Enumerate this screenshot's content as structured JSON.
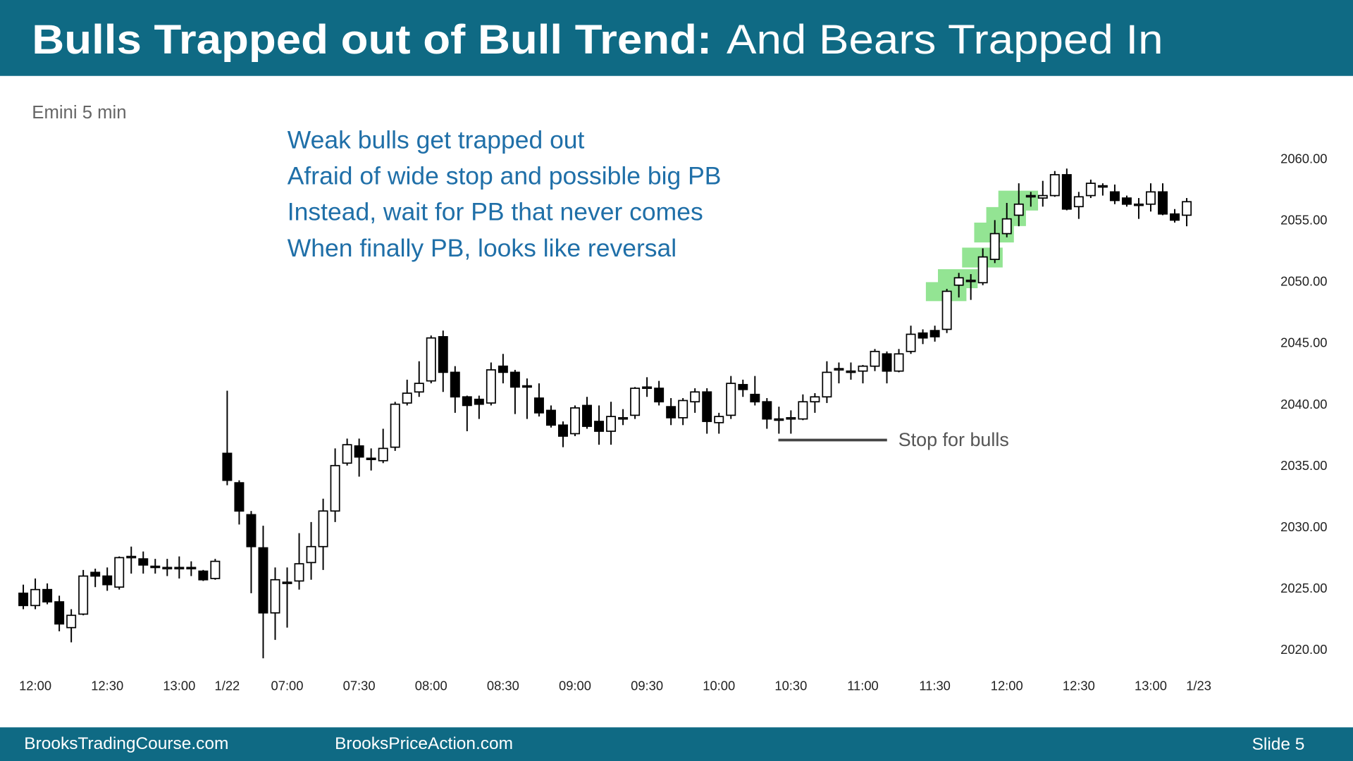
{
  "header": {
    "title_bold": "Bulls Trapped out of Bull Trend:",
    "title_rest": "And Bears Trapped In"
  },
  "footer": {
    "left": "BrooksTradingCourse.com",
    "center": "BrooksPriceAction.com",
    "slide": "Slide 5"
  },
  "chart_data": {
    "type": "candlestick",
    "subtitle": "Emini 5 min",
    "annotations": [
      "Weak bulls get trapped out",
      "Afraid of wide stop and possible big PB",
      "Instead, wait for PB that never comes",
      "When finally PB, looks like reversal"
    ],
    "stop_label": "Stop for bulls",
    "categories": [
      null,
      "12:00",
      null,
      null,
      null,
      null,
      null,
      "12:30",
      null,
      null,
      null,
      null,
      null,
      "13:00",
      null,
      null,
      null,
      "1/22",
      null,
      null,
      null,
      null,
      "07:00",
      null,
      null,
      null,
      null,
      null,
      "07:30",
      null,
      null,
      null,
      null,
      null,
      "08:00",
      null,
      null,
      null,
      null,
      null,
      "08:30",
      null,
      null,
      null,
      null,
      null,
      "09:00",
      null,
      null,
      null,
      null,
      null,
      "09:30",
      null,
      null,
      null,
      null,
      null,
      "10:00",
      null,
      null,
      null,
      null,
      null,
      "10:30",
      null,
      null,
      null,
      null,
      null,
      "11:00",
      null,
      null,
      null,
      null,
      null,
      "11:30",
      null,
      null,
      null,
      null,
      null,
      "12:00",
      null,
      null,
      null,
      null,
      null,
      "12:30",
      null,
      null,
      null,
      null,
      null,
      "13:00",
      null,
      null,
      null,
      "1/23"
    ],
    "open": [
      2024.6,
      2023.6,
      2024.9,
      2023.9,
      2021.8,
      2022.9,
      2026.3,
      2026.0,
      2025.1,
      2027.5,
      2027.4,
      2026.8,
      2026.7,
      2026.7,
      2026.7,
      2026.4,
      2025.8,
      2036.0,
      2033.6,
      2031.0,
      2028.3,
      2023.0,
      2025.5,
      2025.6,
      2027.1,
      2028.4,
      2031.3,
      2035.2,
      2036.6,
      2035.6,
      2035.4,
      2036.5,
      2040.1,
      2041.0,
      2041.9,
      2045.5,
      2042.6,
      2040.6,
      2040.4,
      2040.1,
      2043.1,
      2042.6,
      2041.5,
      2040.5,
      2039.5,
      2038.3,
      2037.6,
      2039.9,
      2038.6,
      2037.8,
      2038.9,
      2039.1,
      2041.4,
      2041.3,
      2039.8,
      2038.9,
      2040.2,
      2041.0,
      2038.5,
      2039.1,
      2041.6,
      2040.8,
      2040.2,
      2038.8,
      2038.8,
      2038.8,
      2040.2,
      2040.6,
      2042.8,
      2042.7,
      2042.7,
      2043.1,
      2044.1,
      2042.7,
      2044.3,
      2045.8,
      2046.0,
      2046.1,
      2049.7,
      2050.0,
      2049.9,
      2051.8,
      2053.9,
      2055.4,
      2056.9,
      2056.8,
      2057.0,
      2058.7,
      2056.1,
      2057.0,
      2057.7,
      2057.3,
      2056.8,
      2056.3,
      2056.3,
      2057.3,
      2055.5,
      2055.4,
      null
    ],
    "high": [
      2025.3,
      2025.8,
      2025.4,
      2024.4,
      2023.3,
      2026.5,
      2026.6,
      2026.7,
      2027.6,
      2028.4,
      2028.0,
      2027.4,
      2027.4,
      2027.6,
      2027.2,
      2026.5,
      2027.4,
      2041.1,
      2033.8,
      2031.3,
      2030.1,
      2026.7,
      2026.7,
      2029.5,
      2030.4,
      2032.3,
      2036.4,
      2037.2,
      2037.2,
      2036.4,
      2038.0,
      2040.2,
      2042.0,
      2043.5,
      2045.6,
      2046.0,
      2043.1,
      2040.7,
      2040.7,
      2043.4,
      2044.1,
      2042.8,
      2042.1,
      2041.7,
      2039.9,
      2038.6,
      2039.9,
      2040.6,
      2039.9,
      2040.2,
      2039.6,
      2041.4,
      2042.2,
      2041.9,
      2040.5,
      2040.5,
      2041.3,
      2041.3,
      2039.3,
      2042.3,
      2042.0,
      2042.3,
      2040.5,
      2039.8,
      2039.5,
      2040.8,
      2040.9,
      2043.5,
      2043.4,
      2043.4,
      2043.2,
      2044.5,
      2044.3,
      2044.5,
      2046.4,
      2046.1,
      2046.4,
      2049.4,
      2050.7,
      2050.6,
      2052.7,
      2055.0,
      2056.4,
      2058.0,
      2057.3,
      2058.2,
      2059.0,
      2059.2,
      2057.3,
      2058.3,
      2058.0,
      2057.9,
      2057.0,
      2056.8,
      2058.0,
      2058.0,
      2055.9,
      2056.8,
      null
    ],
    "low": [
      2023.3,
      2023.3,
      2023.7,
      2021.5,
      2020.6,
      2022.8,
      2025.1,
      2024.8,
      2024.9,
      2026.2,
      2026.2,
      2026.2,
      2026.0,
      2025.8,
      2026.0,
      2025.6,
      2025.7,
      2033.4,
      2030.2,
      2024.6,
      2019.3,
      2020.8,
      2021.8,
      2024.9,
      2025.7,
      2026.5,
      2030.4,
      2035.0,
      2034.1,
      2034.6,
      2035.2,
      2036.2,
      2039.9,
      2040.6,
      2041.7,
      2041.0,
      2039.3,
      2037.8,
      2038.8,
      2039.9,
      2041.7,
      2039.2,
      2038.8,
      2039.0,
      2038.1,
      2036.5,
      2037.4,
      2038.0,
      2036.7,
      2036.7,
      2038.3,
      2038.8,
      2040.6,
      2039.9,
      2038.3,
      2038.3,
      2039.3,
      2037.6,
      2037.6,
      2038.8,
      2040.6,
      2039.9,
      2038.0,
      2037.6,
      2037.6,
      2038.7,
      2039.3,
      2040.1,
      2041.7,
      2042.0,
      2041.7,
      2042.7,
      2041.7,
      2042.6,
      2044.1,
      2044.9,
      2045.1,
      2045.8,
      2048.7,
      2048.5,
      2049.7,
      2051.5,
      2053.6,
      2054.5,
      2056.1,
      2056.1,
      2056.9,
      2055.8,
      2055.1,
      2056.8,
      2057.0,
      2056.3,
      2056.1,
      2055.1,
      2055.7,
      2055.4,
      2054.8,
      2054.5,
      null
    ],
    "close": [
      2023.6,
      2024.9,
      2023.9,
      2022.1,
      2022.8,
      2026.0,
      2026.0,
      2025.3,
      2027.5,
      2027.6,
      2026.9,
      2026.7,
      2026.7,
      2026.7,
      2026.6,
      2025.7,
      2027.2,
      2033.8,
      2031.3,
      2028.4,
      2023.0,
      2025.7,
      2025.5,
      2027.0,
      2028.4,
      2031.3,
      2035.0,
      2036.7,
      2035.7,
      2035.5,
      2036.4,
      2040.0,
      2040.9,
      2041.7,
      2045.4,
      2042.6,
      2040.6,
      2039.9,
      2040.0,
      2042.8,
      2042.6,
      2041.4,
      2041.4,
      2039.3,
      2038.3,
      2037.4,
      2039.7,
      2038.2,
      2037.8,
      2039.0,
      2038.9,
      2041.3,
      2041.4,
      2040.2,
      2038.9,
      2040.3,
      2041.0,
      2038.6,
      2039.0,
      2041.7,
      2041.2,
      2040.2,
      2038.8,
      2038.8,
      2038.9,
      2040.2,
      2040.6,
      2042.6,
      2042.9,
      2042.7,
      2043.1,
      2044.3,
      2042.7,
      2044.1,
      2045.7,
      2045.4,
      2045.5,
      2049.2,
      2050.3,
      2050.1,
      2052.0,
      2053.9,
      2055.1,
      2056.3,
      2057.0,
      2057.0,
      2058.7,
      2055.9,
      2056.9,
      2058.0,
      2057.8,
      2056.6,
      2056.3,
      2056.3,
      2057.3,
      2055.5,
      2055.0,
      2056.5,
      null
    ],
    "ylim": [
      2018,
      2062
    ],
    "yticks": [
      {
        "value": 2020,
        "label": "2020.00"
      },
      {
        "value": 2025,
        "label": "2025.00"
      },
      {
        "value": 2030,
        "label": "2030.00"
      },
      {
        "value": 2035,
        "label": "2035.00"
      },
      {
        "value": 2040,
        "label": "2040.00"
      },
      {
        "value": 2045,
        "label": "2045.00"
      },
      {
        "value": 2050,
        "label": "2050.00"
      },
      {
        "value": 2055,
        "label": "2055.00"
      },
      {
        "value": 2060,
        "label": "2060.00"
      }
    ],
    "up_color": "#ffffff",
    "down_color": "#000000"
  }
}
